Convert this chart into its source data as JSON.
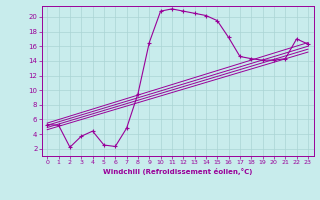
{
  "xlabel": "Windchill (Refroidissement éolien,°C)",
  "bg_color": "#c8ecec",
  "grid_color": "#aad4d4",
  "line_color": "#990099",
  "xlim": [
    -0.5,
    23.5
  ],
  "ylim": [
    1,
    21.5
  ],
  "xticks": [
    0,
    1,
    2,
    3,
    4,
    5,
    6,
    7,
    8,
    9,
    10,
    11,
    12,
    13,
    14,
    15,
    16,
    17,
    18,
    19,
    20,
    21,
    22,
    23
  ],
  "yticks": [
    2,
    4,
    6,
    8,
    10,
    12,
    14,
    16,
    18,
    20
  ],
  "curve_x": [
    0,
    1,
    2,
    3,
    4,
    5,
    6,
    7,
    8,
    9,
    10,
    11,
    12,
    13,
    14,
    15,
    16,
    17,
    18,
    19,
    20,
    21,
    22,
    23
  ],
  "curve_y": [
    5.3,
    5.2,
    2.2,
    3.7,
    4.4,
    2.5,
    2.3,
    4.8,
    9.5,
    16.5,
    20.8,
    21.1,
    20.8,
    20.5,
    20.2,
    19.5,
    17.2,
    14.6,
    14.3,
    14.1,
    14.1,
    14.3,
    17.0,
    16.3
  ],
  "diag_lines": [
    {
      "x": [
        0,
        23
      ],
      "y": [
        5.5,
        16.5
      ]
    },
    {
      "x": [
        0,
        23
      ],
      "y": [
        5.2,
        16.0
      ]
    },
    {
      "x": [
        0,
        23
      ],
      "y": [
        4.9,
        15.6
      ]
    },
    {
      "x": [
        0,
        23
      ],
      "y": [
        4.6,
        15.2
      ]
    }
  ]
}
